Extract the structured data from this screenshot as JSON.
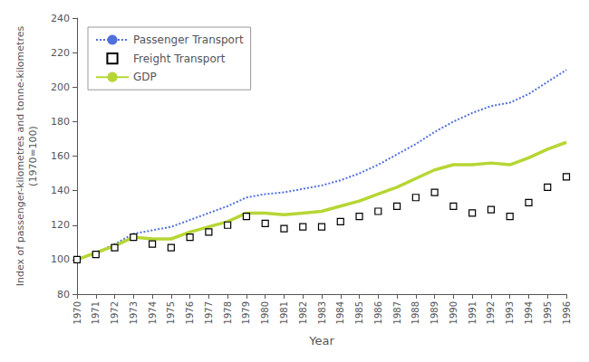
{
  "chart_data": {
    "type": "line",
    "xlabel": "Year",
    "ylabel": "Index of passenger-kilometres and tonne-kilometres\n(1970=100)",
    "x": [
      1970,
      1971,
      1972,
      1973,
      1974,
      1975,
      1976,
      1977,
      1978,
      1979,
      1980,
      1981,
      1982,
      1983,
      1984,
      1985,
      1986,
      1987,
      1988,
      1989,
      1990,
      1991,
      1992,
      1993,
      1994,
      1995,
      1996
    ],
    "series": [
      {
        "name": "Passenger Transport",
        "line_style": "dotted",
        "values": [
          100,
          104,
          109,
          115,
          117,
          119,
          123,
          127,
          131,
          136,
          138,
          139,
          141,
          143,
          146,
          150,
          155,
          161,
          167,
          174,
          180,
          185,
          189,
          191,
          196,
          203,
          210
        ]
      },
      {
        "name": "Freight Transport",
        "line_style": "dashed",
        "marker": "square",
        "values": [
          100,
          103,
          107,
          113,
          109,
          107,
          113,
          116,
          120,
          125,
          121,
          118,
          119,
          119,
          122,
          125,
          128,
          131,
          136,
          139,
          131,
          127,
          129,
          125,
          133,
          142,
          148
        ]
      },
      {
        "name": "GDP",
        "line_style": "solid",
        "values": [
          100,
          104,
          108,
          113,
          112,
          112,
          116,
          119,
          122,
          127,
          127,
          126,
          127,
          128,
          131,
          134,
          138,
          142,
          147,
          152,
          155,
          155,
          156,
          155,
          159,
          164,
          168
        ]
      }
    ],
    "xlim": [
      1970,
      1996
    ],
    "xticks": [
      1970,
      1971,
      1972,
      1973,
      1974,
      1975,
      1976,
      1977,
      1978,
      1979,
      1980,
      1981,
      1982,
      1983,
      1984,
      1985,
      1986,
      1987,
      1988,
      1989,
      1990,
      1991,
      1992,
      1993,
      1994,
      1995,
      1996
    ],
    "ylim": [
      80,
      240
    ],
    "yticks": [
      80,
      100,
      120,
      140,
      160,
      180,
      200,
      220,
      240
    ],
    "grid": false,
    "legend": "upper left"
  }
}
